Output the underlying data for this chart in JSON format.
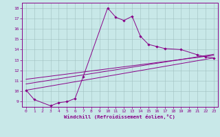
{
  "title": "",
  "xlabel": "Windchill (Refroidissement éolien,°C)",
  "bg_color": "#c8e8e8",
  "line_color": "#880088",
  "xlim": [
    -0.5,
    23.5
  ],
  "ylim": [
    8.5,
    18.5
  ],
  "xticks": [
    0,
    1,
    2,
    3,
    4,
    5,
    6,
    7,
    8,
    9,
    10,
    11,
    12,
    13,
    14,
    15,
    16,
    17,
    18,
    19,
    20,
    21,
    22,
    23
  ],
  "yticks": [
    9,
    10,
    11,
    12,
    13,
    14,
    15,
    16,
    17,
    18
  ],
  "main_x": [
    0,
    1,
    3,
    4,
    5,
    6,
    7,
    10,
    11,
    12,
    13,
    14,
    15,
    16,
    17,
    19,
    21,
    22,
    23
  ],
  "main_y": [
    10.1,
    9.2,
    8.6,
    8.9,
    9.0,
    9.3,
    11.4,
    18.0,
    17.1,
    16.8,
    17.2,
    15.3,
    14.5,
    14.3,
    14.1,
    14.0,
    13.5,
    13.3,
    13.2
  ],
  "line1_x": [
    0,
    23
  ],
  "line1_y": [
    10.1,
    13.2
  ],
  "line2_x": [
    0,
    23
  ],
  "line2_y": [
    10.7,
    13.55
  ],
  "line3_x": [
    0,
    23
  ],
  "line3_y": [
    11.15,
    13.45
  ],
  "figsize": [
    3.2,
    2.0
  ],
  "dpi": 100
}
